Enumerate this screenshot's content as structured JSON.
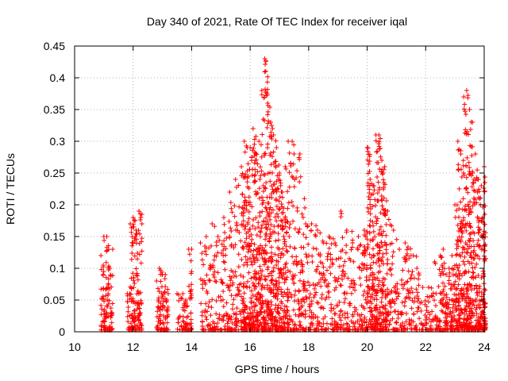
{
  "chart_data": {
    "type": "scatter",
    "title": "Day 340 of 2021, Rate Of TEC Index for receiver iqal",
    "xlabel": "GPS time / hours",
    "ylabel": "ROTI / TECUs",
    "xlim": [
      10,
      24
    ],
    "ylim": [
      0,
      0.45
    ],
    "x_ticks": [
      "10",
      "12",
      "14",
      "16",
      "18",
      "20",
      "22",
      "24"
    ],
    "y_ticks": [
      "0",
      "0.05",
      "0.1",
      "0.15",
      "0.2",
      "0.25",
      "0.3",
      "0.35",
      "0.4",
      "0.45"
    ],
    "grid": true,
    "marker": "plus",
    "series": [
      {
        "name": "ROTI",
        "color": "#ff0000",
        "note": "dense cloud of points; representative envelope (max ROTI per time bin) listed below",
        "x": [
          10.9,
          11.0,
          11.1,
          11.2,
          11.3,
          11.8,
          11.9,
          12.0,
          12.1,
          12.2,
          12.3,
          12.8,
          12.9,
          13.0,
          13.1,
          13.2,
          13.5,
          13.7,
          13.8,
          13.9,
          14.0,
          14.3,
          14.5,
          14.7,
          14.9,
          15.1,
          15.3,
          15.5,
          15.7,
          15.8,
          15.9,
          16.0,
          16.1,
          16.2,
          16.3,
          16.4,
          16.5,
          16.6,
          16.7,
          16.8,
          16.9,
          17.0,
          17.1,
          17.2,
          17.3,
          17.5,
          17.7,
          17.9,
          18.1,
          18.3,
          18.5,
          18.7,
          18.9,
          19.1,
          19.3,
          19.5,
          19.7,
          19.9,
          20.0,
          20.1,
          20.2,
          20.3,
          20.4,
          20.5,
          20.6,
          20.7,
          20.9,
          21.1,
          21.3,
          21.5,
          21.7,
          21.9,
          22.1,
          22.3,
          22.5,
          22.6,
          22.7,
          22.8,
          22.9,
          23.0,
          23.1,
          23.2,
          23.3,
          23.4,
          23.5,
          23.6,
          23.7,
          23.8,
          23.9,
          24.0
        ],
        "y": [
          0.12,
          0.15,
          0.15,
          0.1,
          0.13,
          0.06,
          0.17,
          0.18,
          0.16,
          0.19,
          0.17,
          0.08,
          0.1,
          0.09,
          0.09,
          0.06,
          0.06,
          0.06,
          0.05,
          0.13,
          0.13,
          0.14,
          0.15,
          0.17,
          0.15,
          0.18,
          0.22,
          0.24,
          0.26,
          0.3,
          0.29,
          0.29,
          0.32,
          0.28,
          0.3,
          0.38,
          0.43,
          0.36,
          0.33,
          0.31,
          0.29,
          0.25,
          0.22,
          0.26,
          0.3,
          0.28,
          0.28,
          0.17,
          0.17,
          0.16,
          0.14,
          0.15,
          0.14,
          0.19,
          0.16,
          0.14,
          0.15,
          0.16,
          0.29,
          0.24,
          0.23,
          0.31,
          0.31,
          0.27,
          0.26,
          0.19,
          0.16,
          0.13,
          0.14,
          0.12,
          0.1,
          0.07,
          0.07,
          0.11,
          0.12,
          0.13,
          0.09,
          0.1,
          0.12,
          0.2,
          0.3,
          0.28,
          0.37,
          0.38,
          0.35,
          0.25,
          0.28,
          0.24,
          0.23,
          0.26
        ]
      }
    ]
  }
}
